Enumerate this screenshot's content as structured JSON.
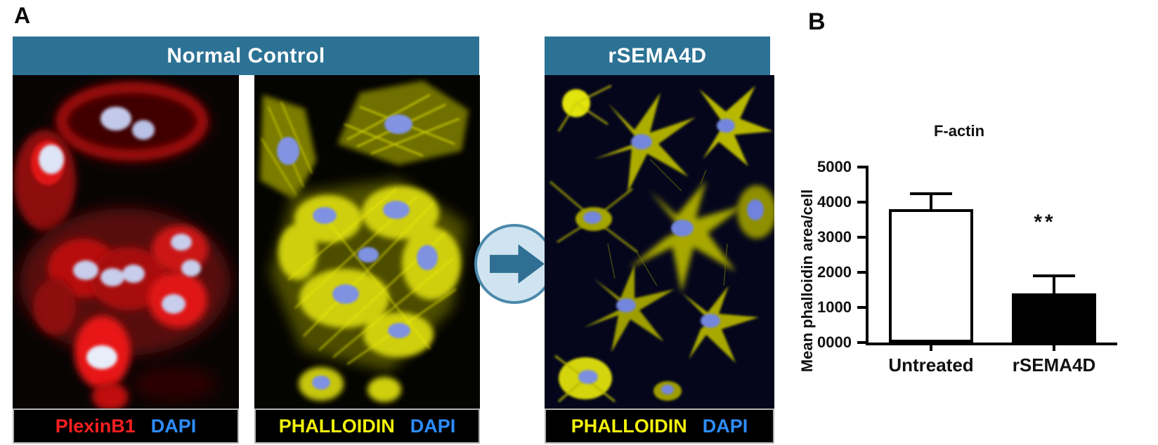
{
  "figure": {
    "panel_a_label": "A",
    "panel_b_label": "B"
  },
  "panel_a": {
    "header_left": "Normal Control",
    "header_right": "rSEMA4D",
    "header_bg": "#2c7294",
    "header_text_color": "#ffffff",
    "arrow": {
      "icon": "right-arrow",
      "circle_fill": "#cfe4f0",
      "circle_border": "#4b89ab",
      "glyph_fill": "#2f6f93"
    },
    "captions": [
      {
        "parts": [
          {
            "text": "PlexinB1",
            "color": "#fa1f1f"
          },
          {
            "text": "DAPI",
            "color": "#2d8dfc"
          }
        ]
      },
      {
        "parts": [
          {
            "text": "PHALLOIDIN",
            "color": "#f2f20c"
          },
          {
            "text": "DAPI",
            "color": "#2d8dfc"
          }
        ]
      },
      {
        "parts": [
          {
            "text": "PHALLOIDIN",
            "color": "#f2f20c"
          },
          {
            "text": "DAPI",
            "color": "#2d8dfc"
          }
        ]
      }
    ]
  },
  "chart_data": {
    "type": "bar",
    "title": "F-actin",
    "ylabel": "Mean phalloidin area/cell",
    "categories": [
      "Untreated",
      "rSEMA4D"
    ],
    "values": [
      3800,
      1400
    ],
    "errors_plus": [
      450,
      500
    ],
    "ylim": [
      0,
      5000
    ],
    "ytick_labels": [
      "0000",
      "1000",
      "2000",
      "3000",
      "4000",
      "5000"
    ],
    "bar_fill_colors": [
      "#ffffff",
      "#000000"
    ],
    "bar_border_color": "#000000",
    "axis_color": "#000000",
    "significance": {
      "label": "**",
      "category_index": 1
    },
    "grid": false,
    "legend": "none"
  }
}
